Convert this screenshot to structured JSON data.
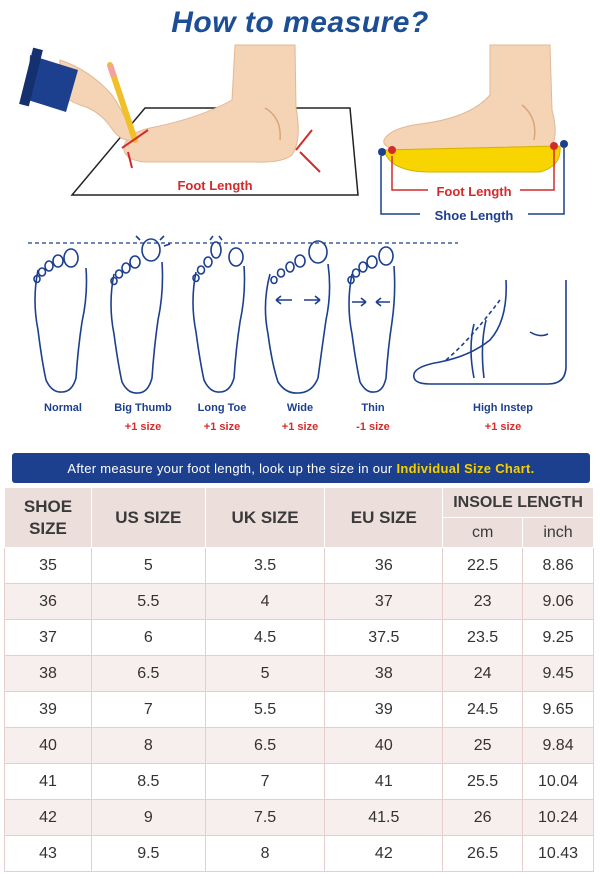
{
  "title": "How to measure?",
  "measure": {
    "foot_length": "Foot Length",
    "shoe_length": "Shoe Length"
  },
  "foot_types": [
    {
      "name": "Normal",
      "size": ""
    },
    {
      "name": "Big Thumb",
      "size": "+1 size"
    },
    {
      "name": "Long Toe",
      "size": "+1 size"
    },
    {
      "name": "Wide",
      "size": "+1 size"
    },
    {
      "name": "Thin",
      "size": "-1 size"
    },
    {
      "name": "High Instep",
      "size": "+1 size"
    }
  ],
  "banner": {
    "text": "After measure your foot length, look up the size in our",
    "highlight": "Individual Size Chart."
  },
  "table": {
    "headers": {
      "shoe_size": "SHOE SIZE",
      "us": "US SIZE",
      "uk": "UK SIZE",
      "eu": "EU SIZE",
      "insole": "INSOLE LENGTH",
      "cm": "cm",
      "inch": "inch"
    },
    "rows": [
      [
        "35",
        "5",
        "3.5",
        "36",
        "22.5",
        "8.86"
      ],
      [
        "36",
        "5.5",
        "4",
        "37",
        "23",
        "9.06"
      ],
      [
        "37",
        "6",
        "4.5",
        "37.5",
        "23.5",
        "9.25"
      ],
      [
        "38",
        "6.5",
        "5",
        "38",
        "24",
        "9.45"
      ],
      [
        "39",
        "7",
        "5.5",
        "39",
        "24.5",
        "9.65"
      ],
      [
        "40",
        "8",
        "6.5",
        "40",
        "25",
        "9.84"
      ],
      [
        "41",
        "8.5",
        "7",
        "41",
        "25.5",
        "10.04"
      ],
      [
        "42",
        "9",
        "7.5",
        "41.5",
        "26",
        "10.24"
      ],
      [
        "43",
        "9.5",
        "8",
        "42",
        "26.5",
        "10.43"
      ]
    ]
  },
  "colors": {
    "title": "#1c4e96",
    "banner_bg": "#1c3f8e",
    "banner_highlight": "#f6d000",
    "label_red": "#d42a2a",
    "outline_blue": "#1c3f8e",
    "skin": "#f5d3b5",
    "insole_yellow": "#f8d400",
    "header_bg": "#ecdfdb",
    "alt_row_bg": "#f7efed"
  }
}
